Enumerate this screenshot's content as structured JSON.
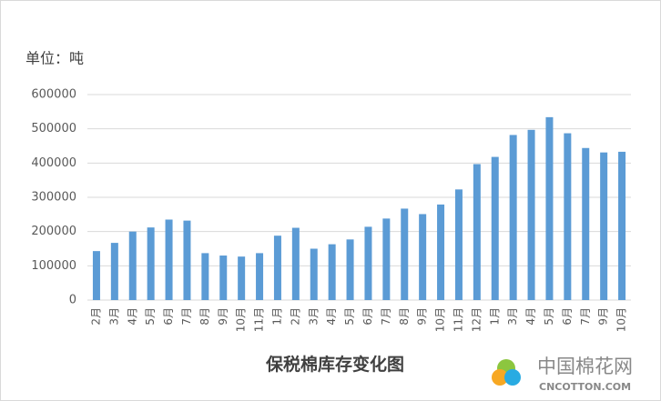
{
  "chart_data": {
    "type": "bar",
    "title": "保税棉库存变化图",
    "unit_label": "单位：吨",
    "categories": [
      "2月",
      "3月",
      "4月",
      "5月",
      "6月",
      "7月",
      "8月",
      "9月",
      "10月",
      "11月",
      "1月",
      "2月",
      "3月",
      "4月",
      "5月",
      "6月",
      "7月",
      "8月",
      "9月",
      "10月",
      "11月",
      "12月",
      "1月",
      "3月",
      "4月",
      "5月",
      "6月",
      "7月",
      "9月",
      "10月"
    ],
    "values": [
      143000,
      167000,
      200000,
      212000,
      235000,
      232000,
      137000,
      130000,
      127000,
      137000,
      188000,
      211000,
      150000,
      163000,
      177000,
      214000,
      238000,
      267000,
      251000,
      279000,
      323000,
      397000,
      418000,
      482000,
      497000,
      534000,
      487000,
      444000,
      431000,
      433000
    ],
    "color": "#5b9bd5",
    "ylim": [
      0,
      600000
    ],
    "yticks": [
      0,
      100000,
      200000,
      300000,
      400000,
      500000,
      600000
    ],
    "grid": true
  },
  "watermark": {
    "name": "中国棉花网",
    "url": "CNCOTTON.COM"
  }
}
